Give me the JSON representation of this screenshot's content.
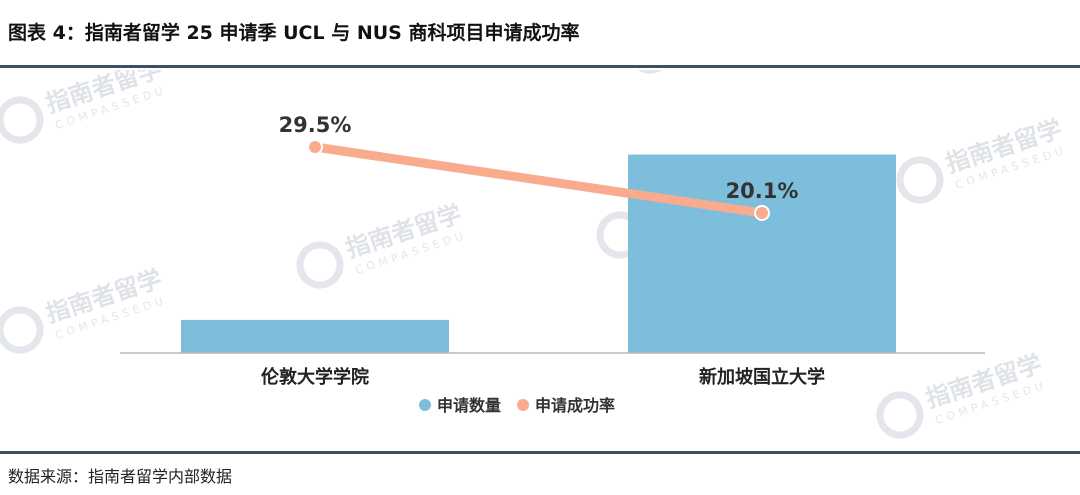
{
  "header": {
    "title": "图表 4：指南者留学 25 申请季 UCL 与 NUS 商科项目申请成功率"
  },
  "footer": {
    "source": "数据来源：指南者留学内部数据"
  },
  "watermark": {
    "text": "指南者留学",
    "subtext": "COMPASSEDU"
  },
  "chart_data": {
    "type": "bar",
    "categories": [
      "伦敦大学学院",
      "新加坡国立大学"
    ],
    "series": [
      {
        "name": "申请数量",
        "type": "bar",
        "values": [
          20,
          120
        ],
        "color": "#7dbedc"
      },
      {
        "name": "申请成功率",
        "type": "line",
        "values": [
          29.5,
          20.1
        ],
        "labels": [
          "29.5%",
          "20.1%"
        ],
        "color": "#f9ab8e"
      }
    ],
    "legend_position": "bottom",
    "grid": false
  }
}
